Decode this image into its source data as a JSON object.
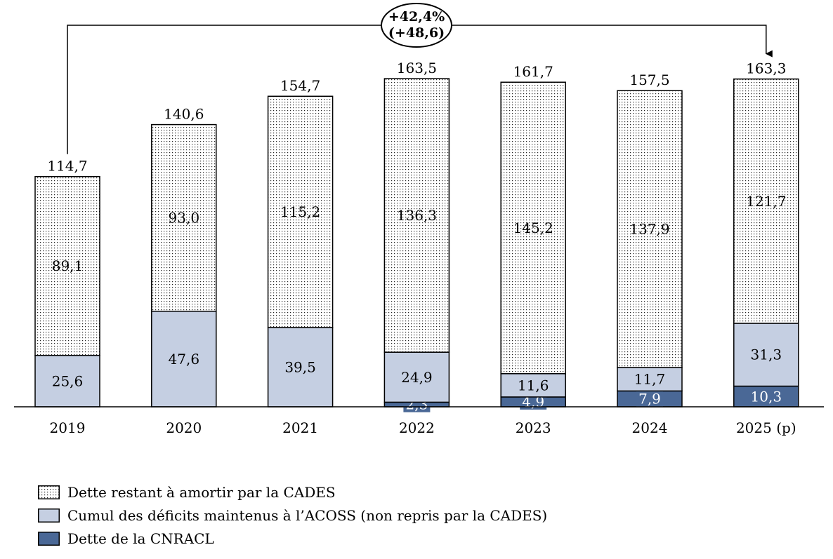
{
  "chart_data": {
    "type": "bar",
    "stacked": true,
    "categories": [
      "2019",
      "2020",
      "2021",
      "2022",
      "2023",
      "2024",
      "2025 (p)"
    ],
    "series": [
      {
        "name": "Dette de la CNRACL",
        "values": [
          0,
          0,
          0,
          2.3,
          4.9,
          7.9,
          10.3
        ],
        "labels": [
          "",
          "",
          "",
          "2,3",
          "4,9",
          "7,9",
          "10,3"
        ],
        "color": "#4a6896"
      },
      {
        "name": "Cumul des déficits maintenus à l’ACOSS (non repris par la CADES)",
        "values": [
          25.6,
          47.6,
          39.5,
          24.9,
          11.6,
          11.7,
          31.3
        ],
        "labels": [
          "25,6",
          "47,6",
          "39,5",
          "24,9",
          "11,6",
          "11,7",
          "31,3"
        ],
        "color": "#c5cfe2"
      },
      {
        "name": "Dette restant à amortir par la CADES",
        "values": [
          89.1,
          93.0,
          115.2,
          136.3,
          145.2,
          137.9,
          121.7
        ],
        "labels": [
          "89,1",
          "93,0",
          "115,2",
          "136,3",
          "145,2",
          "137,9",
          "121,7"
        ],
        "color": "dotted"
      }
    ],
    "totals": [
      114.7,
      140.6,
      154.7,
      163.5,
      161.7,
      157.5,
      163.3
    ],
    "total_labels": [
      "114,7",
      "140,6",
      "154,7",
      "163,5",
      "161,7",
      "157,5",
      "163,3"
    ],
    "annotation": {
      "line1": "+42,4%",
      "line2": "(+48,6)",
      "from": "2019",
      "to": "2025 (p)"
    },
    "legend_position": "bottom-left",
    "grid": false,
    "ylim": [
      0,
      180
    ]
  }
}
